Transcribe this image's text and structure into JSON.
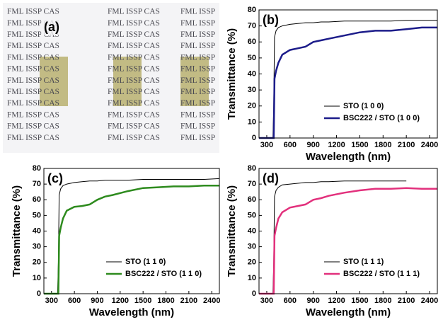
{
  "photo": {
    "label": "(a)",
    "text_rows": [
      [
        "FML ISSP CAS",
        "FML ISSP CAS",
        "FML ISSP"
      ],
      [
        "FML ISSP CAS",
        "FML ISSP CAS",
        "FML ISSP"
      ],
      [
        "FML ISSP CAS",
        "FML ISSP CAS",
        "FML ISSP"
      ],
      [
        "FML ISSP CAS",
        "FML ISSP CAS",
        "FML ISSP"
      ],
      [
        "FML ISSP CAS",
        "FML ISSP CAS",
        "FML ISSP"
      ],
      [
        "FML ISSP CAS",
        "FML ISSP CAS",
        "FML ISSP"
      ],
      [
        "FML ISSP CAS",
        "FML ISSP CAS",
        "FML ISSP"
      ],
      [
        "FML ISSP CAS",
        "FML ISSP CAS",
        "FML ISSP"
      ],
      [
        "FML ISSP CAS",
        "FML ISSP CAS",
        "FML ISSP"
      ],
      [
        "FML ISSP CAS",
        "FML ISSP CAS",
        "FML ISSP"
      ],
      [
        "FML ISSP CAS",
        "FML ISSP CAS",
        "FML ISSP"
      ],
      [
        "FML ISSP CAS",
        "FML ISSP CAS",
        "FML ISSP"
      ]
    ]
  },
  "chart_data": [
    {
      "type": "line",
      "label": "(b)",
      "xlabel": "Wavelength (nm)",
      "ylabel": "Transmittance (%)",
      "x": [
        200,
        350,
        380,
        390,
        400,
        420,
        450,
        500,
        600,
        700,
        800,
        900,
        1000,
        1100,
        1300,
        1500,
        1700,
        1900,
        2100,
        2300,
        2500
      ],
      "xlim": [
        200,
        2500
      ],
      "xticks": [
        300,
        600,
        900,
        1200,
        1500,
        1800,
        2100,
        2400
      ],
      "ylim": [
        0,
        80
      ],
      "yticks": [
        0,
        10,
        20,
        30,
        40,
        50,
        60,
        70,
        80
      ],
      "legend": "lower right",
      "series": [
        {
          "name": "STO (1 0 0)",
          "color": "#000000",
          "values": [
            0,
            0,
            0,
            20,
            63,
            67,
            69,
            70,
            71,
            71.5,
            72,
            72,
            72.5,
            72.5,
            73,
            73,
            73,
            73,
            73.5,
            73.5,
            73.5
          ]
        },
        {
          "name": "BSC222 / STO (1 0 0)",
          "color": "#1c1c8a",
          "values": [
            0,
            0,
            0,
            0,
            37,
            42,
            47,
            52,
            55,
            56,
            57,
            60,
            61,
            62,
            64,
            66,
            67,
            67,
            68,
            69,
            69
          ]
        }
      ]
    },
    {
      "type": "line",
      "label": "(c)",
      "xlabel": "Wavelength (nm)",
      "ylabel": "Transmittance (%)",
      "x": [
        200,
        350,
        380,
        390,
        400,
        420,
        450,
        500,
        600,
        700,
        800,
        900,
        1000,
        1100,
        1300,
        1500,
        1700,
        1900,
        2100,
        2300,
        2500
      ],
      "xlim": [
        200,
        2500
      ],
      "xticks": [
        300,
        600,
        900,
        1200,
        1500,
        1800,
        2100,
        2400
      ],
      "ylim": [
        0,
        80
      ],
      "yticks": [
        0,
        10,
        20,
        30,
        40,
        50,
        60,
        70,
        80
      ],
      "legend": "lower right",
      "series": [
        {
          "name": "STO (1 1 0)",
          "color": "#000000",
          "values": [
            0,
            0,
            0,
            20,
            63,
            67,
            69,
            70,
            71,
            71.5,
            72,
            72,
            72.5,
            72.5,
            72.5,
            73,
            73,
            73,
            73,
            73,
            73.5
          ]
        },
        {
          "name": "BSC222 / STO (1 1 0)",
          "color": "#2e8b1e",
          "values": [
            0,
            0,
            0,
            0,
            37,
            42,
            48,
            53,
            55.5,
            56,
            57,
            60,
            62,
            63,
            65.5,
            67.5,
            68,
            68.5,
            68.5,
            69,
            69
          ]
        }
      ]
    },
    {
      "type": "line",
      "label": "(d)",
      "xlabel": "Wavelength (nm)",
      "ylabel": "Transmittance (%)",
      "x": [
        200,
        350,
        380,
        390,
        400,
        420,
        450,
        500,
        600,
        700,
        800,
        900,
        1000,
        1100,
        1300,
        1500,
        1700,
        1900,
        2100,
        2300,
        2500
      ],
      "xlim": [
        200,
        2500
      ],
      "xticks": [
        300,
        600,
        900,
        1200,
        1500,
        1800,
        2100,
        2400
      ],
      "ylim": [
        0,
        80
      ],
      "yticks": [
        0,
        10,
        20,
        30,
        40,
        50,
        60,
        70,
        80
      ],
      "legend": "lower right",
      "series": [
        {
          "name": "STO (1 1 1)",
          "color": "#000000",
          "values": [
            0,
            0,
            0,
            20,
            62,
            66,
            68,
            69.5,
            70,
            70.5,
            71,
            71,
            71.5,
            71.5,
            72,
            72,
            72,
            72,
            72,
            null,
            null
          ]
        },
        {
          "name": "BSC222 / STO (1 1 1)",
          "color": "#e2307c",
          "values": [
            0,
            0,
            0,
            0,
            37,
            42,
            48,
            52,
            55,
            56,
            57,
            60,
            61,
            62.5,
            64.5,
            66,
            67,
            67,
            67.5,
            67,
            67
          ]
        }
      ]
    }
  ]
}
